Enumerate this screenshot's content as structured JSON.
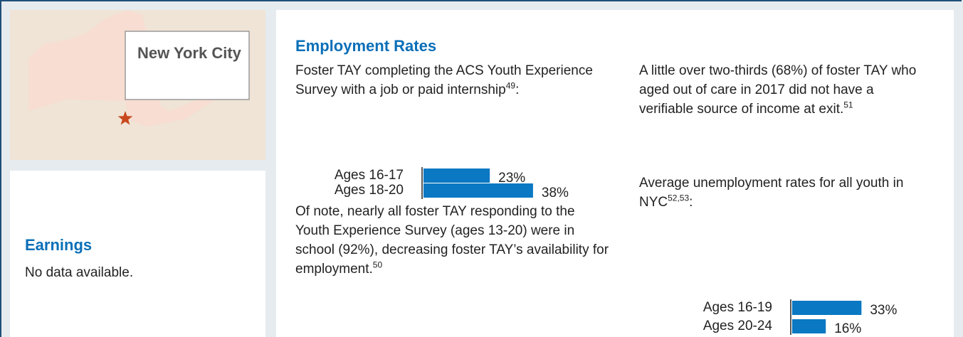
{
  "location": {
    "label": "New York City"
  },
  "earnings": {
    "title": "Earnings",
    "text": "No data available."
  },
  "employment": {
    "title": "Employment Rates",
    "left": {
      "intro": {
        "text": "Foster TAY completing the ACS Youth Experience Survey with a job or paid internship",
        "footnote": "49",
        "tail": ":"
      },
      "chart": {
        "type": "bar",
        "categories": [
          "Ages 16-17",
          "Ages 18-20"
        ],
        "values": [
          23,
          38
        ],
        "value_labels": [
          "23%",
          "38%"
        ],
        "color": "#0a78c2"
      },
      "note": {
        "text": "Of note, nearly all foster TAY responding to the Youth Experience Survey (ages 13-20) were in school (92%), decreasing foster TAY’s availability for employment.",
        "footnote": "50"
      }
    },
    "right": {
      "intro": {
        "text": "A little over two-thirds (68%) of foster TAY who aged out of care in 2017 did not have a verifiable source of income at exit.",
        "footnote": "51"
      },
      "lead": {
        "text": "Average unemployment rates for all youth in NYC",
        "footnote": "52,53",
        "tail": ":"
      },
      "chart": {
        "type": "bar",
        "categories": [
          "Ages 16-19",
          "Ages 20-24"
        ],
        "values": [
          33,
          16
        ],
        "value_labels": [
          "33%",
          "16%"
        ],
        "color": "#0a78c2"
      }
    }
  }
}
